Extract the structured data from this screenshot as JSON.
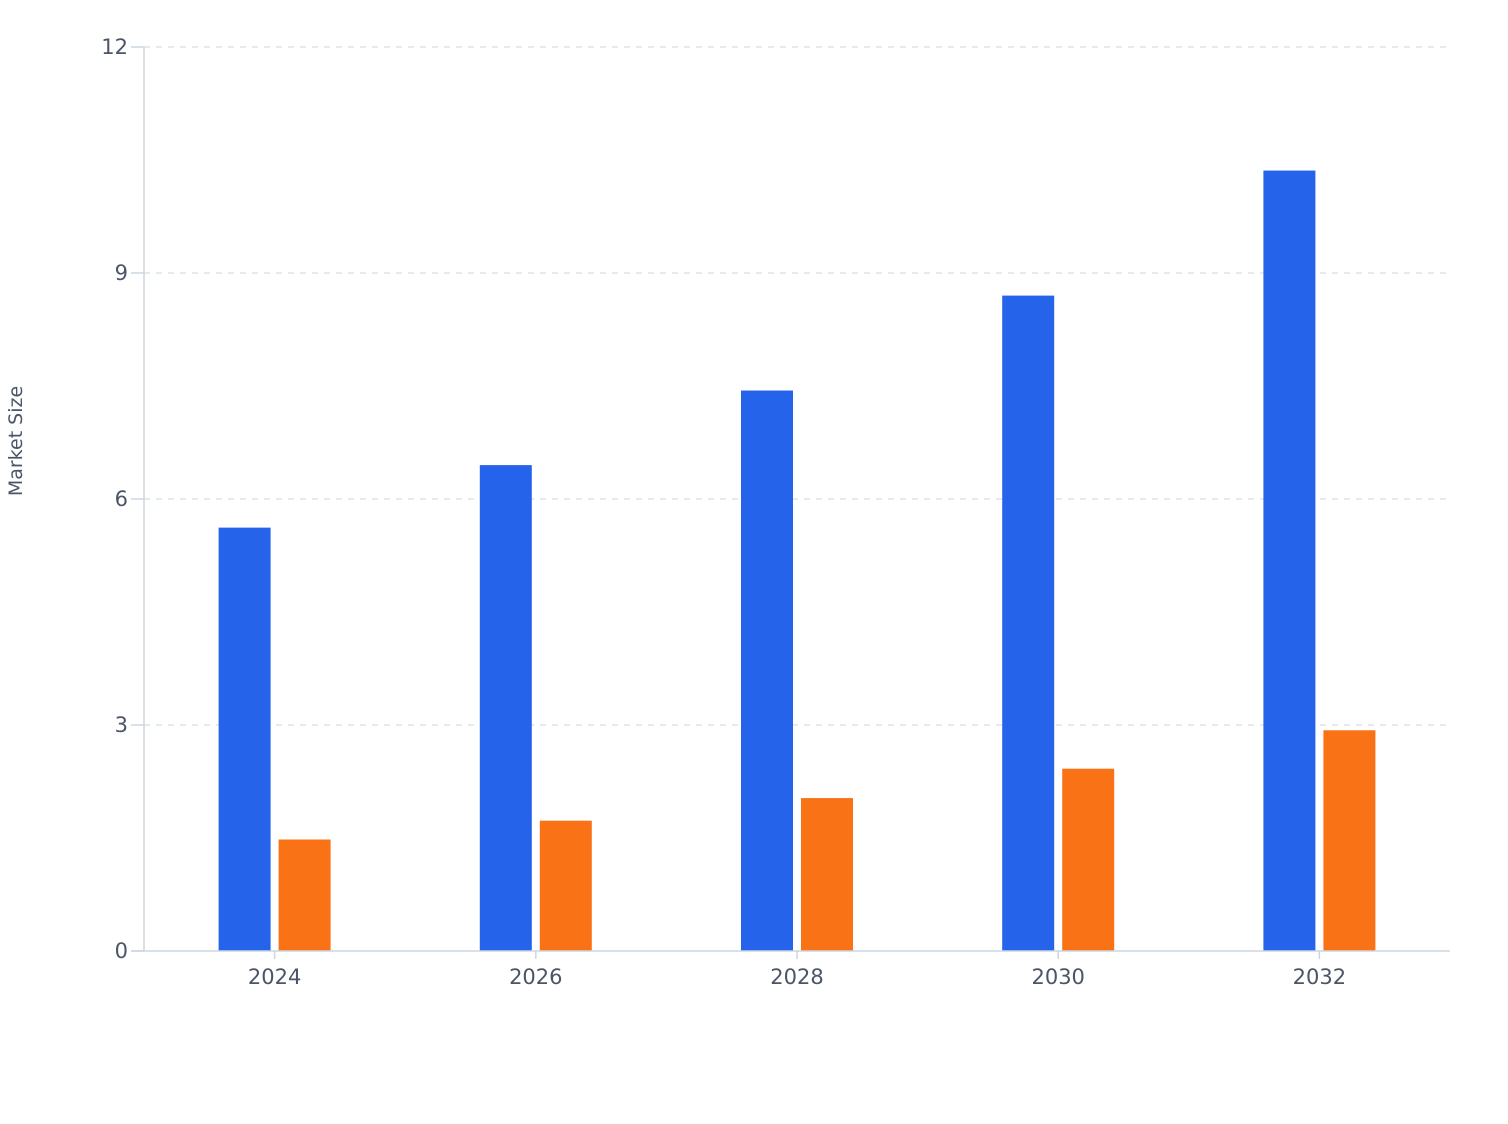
{
  "chart_data": {
    "type": "bar",
    "title": "",
    "xlabel": "",
    "ylabel": "Market Size",
    "ylim": [
      0,
      12
    ],
    "yticks": [
      0,
      3,
      6,
      9,
      12
    ],
    "categories": [
      "2024",
      "2026",
      "2028",
      "2030",
      "2032"
    ],
    "series": [
      {
        "color": "#2563eb",
        "values": [
          5.62,
          6.45,
          7.44,
          8.7,
          10.36
        ]
      },
      {
        "color": "#f97316",
        "values": [
          1.48,
          1.73,
          2.03,
          2.42,
          2.93
        ]
      }
    ],
    "grid": true,
    "grid_style": "dashed-horizontal",
    "legend": "none"
  }
}
